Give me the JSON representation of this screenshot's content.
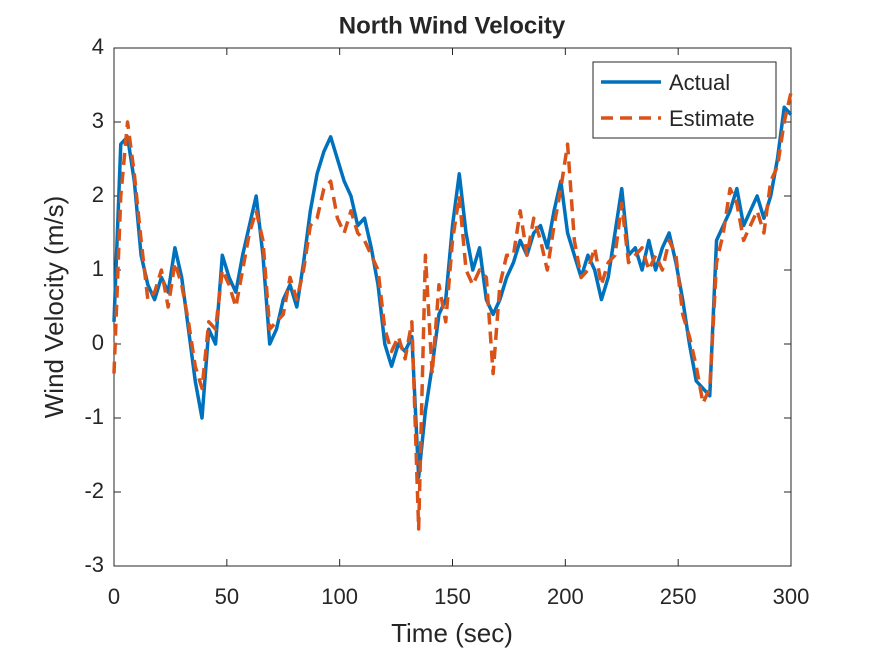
{
  "chart_data": {
    "type": "line",
    "title": "North Wind Velocity",
    "x_label": "Time (sec)",
    "y_label": "Wind Velocity (m/s)",
    "x": [
      0,
      3,
      6,
      9,
      12,
      15,
      18,
      21,
      24,
      27,
      30,
      33,
      36,
      39,
      42,
      45,
      48,
      51,
      54,
      57,
      60,
      63,
      66,
      69,
      72,
      75,
      78,
      81,
      84,
      87,
      90,
      93,
      96,
      99,
      102,
      105,
      108,
      111,
      114,
      117,
      120,
      123,
      126,
      129,
      132,
      135,
      138,
      141,
      144,
      147,
      150,
      153,
      156,
      159,
      162,
      165,
      168,
      171,
      174,
      177,
      180,
      183,
      186,
      189,
      192,
      195,
      198,
      201,
      204,
      207,
      210,
      213,
      216,
      219,
      222,
      225,
      228,
      231,
      234,
      237,
      240,
      243,
      246,
      249,
      252,
      255,
      258,
      261,
      264,
      267,
      270,
      273,
      276,
      279,
      282,
      285,
      288,
      291,
      294,
      297,
      300
    ],
    "series": [
      {
        "name": "Actual",
        "color": "#0072BD",
        "dash": "solid",
        "values": [
          0.3,
          2.7,
          2.8,
          2.2,
          1.2,
          0.8,
          0.6,
          0.9,
          0.7,
          1.3,
          0.9,
          0.2,
          -0.5,
          -1.0,
          0.2,
          0.0,
          1.2,
          0.9,
          0.7,
          1.2,
          1.6,
          2.0,
          1.2,
          0.0,
          0.2,
          0.6,
          0.8,
          0.5,
          1.1,
          1.8,
          2.3,
          2.6,
          2.8,
          2.5,
          2.2,
          2.0,
          1.6,
          1.7,
          1.3,
          0.8,
          0.0,
          -0.3,
          0.0,
          -0.1,
          0.1,
          -1.8,
          -0.9,
          -0.3,
          0.4,
          0.6,
          1.6,
          2.3,
          1.5,
          1.0,
          1.3,
          0.6,
          0.4,
          0.6,
          0.9,
          1.1,
          1.4,
          1.2,
          1.5,
          1.6,
          1.3,
          1.8,
          2.2,
          1.5,
          1.2,
          0.9,
          1.2,
          1.0,
          0.6,
          0.9,
          1.5,
          2.1,
          1.2,
          1.3,
          1.0,
          1.4,
          1.0,
          1.3,
          1.5,
          1.1,
          0.6,
          0.0,
          -0.5,
          -0.6,
          -0.7,
          1.4,
          1.6,
          1.8,
          2.1,
          1.6,
          1.8,
          2.0,
          1.7,
          2.0,
          2.5,
          3.2,
          3.1
        ]
      },
      {
        "name": "Estimate",
        "color": "#D95319",
        "dash": "dashed",
        "values": [
          -0.4,
          2.0,
          3.0,
          2.3,
          1.4,
          0.6,
          0.7,
          1.0,
          0.5,
          1.1,
          0.8,
          0.3,
          -0.3,
          -0.6,
          0.3,
          0.2,
          1.0,
          0.8,
          0.5,
          1.0,
          1.5,
          1.8,
          1.4,
          0.2,
          0.3,
          0.4,
          0.9,
          0.6,
          1.0,
          1.6,
          1.7,
          2.1,
          2.2,
          1.7,
          1.5,
          1.8,
          1.5,
          1.4,
          1.2,
          1.0,
          0.2,
          -0.1,
          0.1,
          -0.2,
          0.3,
          -2.5,
          1.2,
          -0.4,
          0.8,
          0.3,
          1.4,
          2.0,
          1.0,
          0.8,
          1.0,
          0.9,
          -0.4,
          0.8,
          1.2,
          1.2,
          1.8,
          1.2,
          1.7,
          1.4,
          1.0,
          1.6,
          2.1,
          2.7,
          1.4,
          0.9,
          1.0,
          1.3,
          0.8,
          1.1,
          1.2,
          1.9,
          1.1,
          1.2,
          1.3,
          1.0,
          1.2,
          1.0,
          1.4,
          1.2,
          0.4,
          0.1,
          -0.3,
          -0.8,
          -0.6,
          1.1,
          1.5,
          2.1,
          1.9,
          1.4,
          1.6,
          1.8,
          1.5,
          2.2,
          2.4,
          3.0,
          3.4
        ]
      }
    ],
    "xlim": [
      0,
      300
    ],
    "xticks": [
      0,
      50,
      100,
      150,
      200,
      250,
      300
    ],
    "ylim": [
      -3,
      4
    ],
    "yticks": [
      -3,
      -2,
      -1,
      0,
      1,
      2,
      3,
      4
    ],
    "legend": "northeast",
    "grid": false
  }
}
